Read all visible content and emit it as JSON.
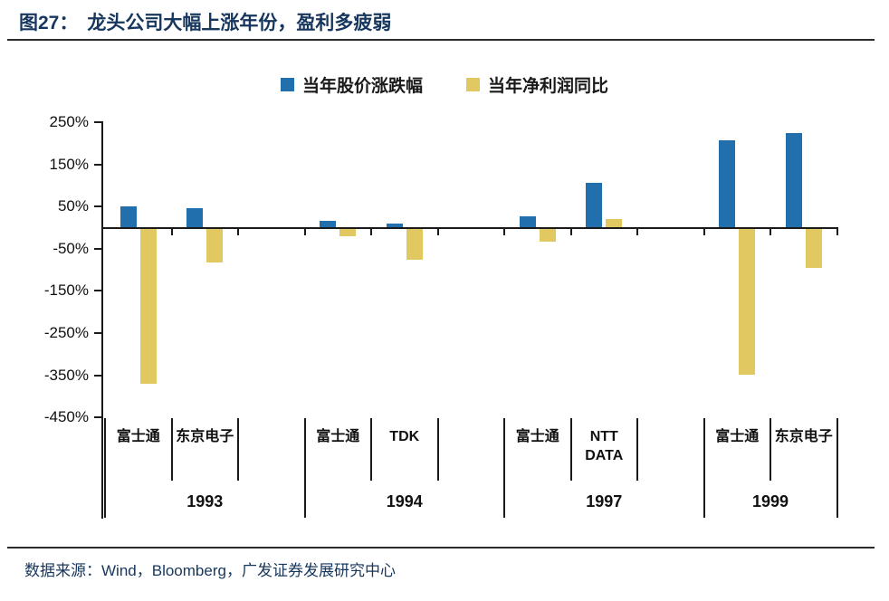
{
  "figure": {
    "label": "图27：",
    "title": "龙头公司大幅上涨年份，盈利多疲弱"
  },
  "legend": {
    "items": [
      {
        "label": "当年股价涨跌幅",
        "color": "#2170ad"
      },
      {
        "label": "当年净利润同比",
        "color": "#e2c860"
      }
    ]
  },
  "source": {
    "text": "数据来源：Wind，Bloomberg，广发证券发展研究中心"
  },
  "chart_data": {
    "type": "bar",
    "title": "图27：龙头公司大幅上涨年份，盈利多疲弱",
    "unit": "%",
    "xlabel": "",
    "ylabel": "",
    "ylim": [
      -500,
      270
    ],
    "yticks": [
      250,
      150,
      50,
      -50,
      -150,
      -250,
      -350,
      -450
    ],
    "grid": false,
    "legend_position": "top",
    "categories": [
      "富士通 1993",
      "东京电子 1993",
      "富士通 1994",
      "TDK 1994",
      "富士通 1997",
      "NTT DATA 1997",
      "富士通 1999",
      "东京电子 1999"
    ],
    "series": [
      {
        "name": "当年股价涨跌幅",
        "color": "#2170ad",
        "values": [
          50,
          46,
          17,
          9,
          27,
          107,
          207,
          225
        ]
      },
      {
        "name": "当年净利润同比",
        "color": "#e2c860",
        "values": [
          -368,
          -80,
          -19,
          -73,
          -31,
          21,
          -346,
          -93
        ]
      }
    ],
    "groups": [
      {
        "year": "1993",
        "companies": [
          {
            "name": "富士通",
            "price_change_pct": 50,
            "profit_growth_pct": -368
          },
          {
            "name": "东京电子",
            "price_change_pct": 46,
            "profit_growth_pct": -80
          }
        ]
      },
      {
        "year": "1994",
        "companies": [
          {
            "name": "富士通",
            "price_change_pct": 17,
            "profit_growth_pct": -19
          },
          {
            "name": "TDK",
            "price_change_pct": 9,
            "profit_growth_pct": -73
          }
        ]
      },
      {
        "year": "1997",
        "companies": [
          {
            "name": "富士通",
            "price_change_pct": 27,
            "profit_growth_pct": -31
          },
          {
            "name": "NTT DATA",
            "price_change_pct": 107,
            "profit_growth_pct": 21
          }
        ]
      },
      {
        "year": "1999",
        "companies": [
          {
            "name": "富士通",
            "price_change_pct": 207,
            "profit_growth_pct": -346
          },
          {
            "name": "东京电子",
            "price_change_pct": 225,
            "profit_growth_pct": -93
          }
        ]
      }
    ]
  }
}
